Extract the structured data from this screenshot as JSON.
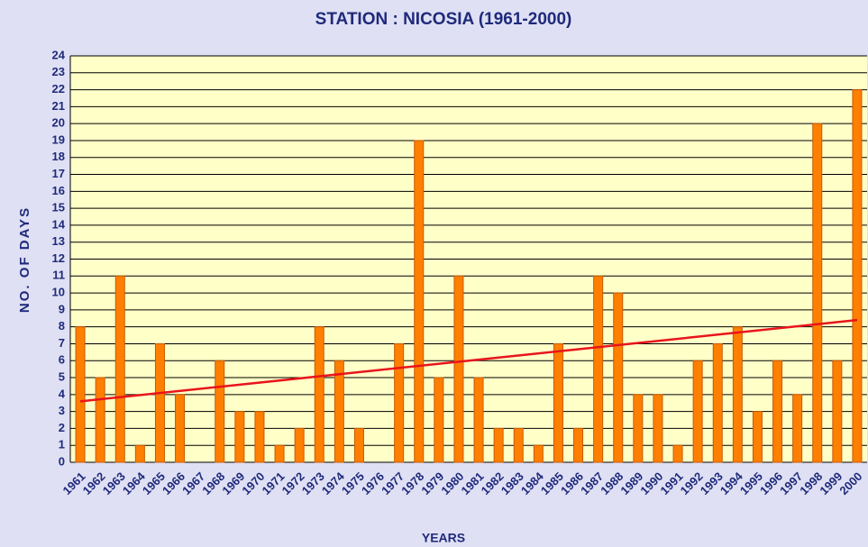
{
  "chart_data": {
    "type": "bar",
    "title": "STATION : NICOSIA (1961-2000)",
    "x_label": "YEARS",
    "y_label": "NO. OF DAYS",
    "categories": [
      "1961",
      "1962",
      "1963",
      "1964",
      "1965",
      "1966",
      "1967",
      "1968",
      "1969",
      "1970",
      "1971",
      "1972",
      "1973",
      "1974",
      "1975",
      "1976",
      "1977",
      "1978",
      "1979",
      "1980",
      "1981",
      "1982",
      "1983",
      "1984",
      "1985",
      "1986",
      "1987",
      "1988",
      "1989",
      "1990",
      "1991",
      "1992",
      "1993",
      "1994",
      "1995",
      "1996",
      "1997",
      "1998",
      "1999",
      "2000"
    ],
    "values": [
      8,
      5,
      11,
      1,
      7,
      4,
      0,
      6,
      3,
      3,
      1,
      2,
      8,
      6,
      2,
      0,
      7,
      19,
      5,
      11,
      5,
      2,
      2,
      1,
      7,
      2,
      11,
      10,
      4,
      4,
      1,
      6,
      7,
      8,
      3,
      6,
      4,
      20,
      6,
      22
    ],
    "color": "#ff7f00",
    "trendline": {
      "start": 3.6,
      "end": 8.4,
      "color": "#e8141c"
    },
    "ylim": [
      0,
      24
    ],
    "yticks": [
      0,
      1,
      2,
      3,
      4,
      5,
      6,
      7,
      8,
      9,
      10,
      11,
      12,
      13,
      14,
      15,
      16,
      17,
      18,
      19,
      20,
      21,
      22,
      23,
      24
    ],
    "grid": true
  }
}
